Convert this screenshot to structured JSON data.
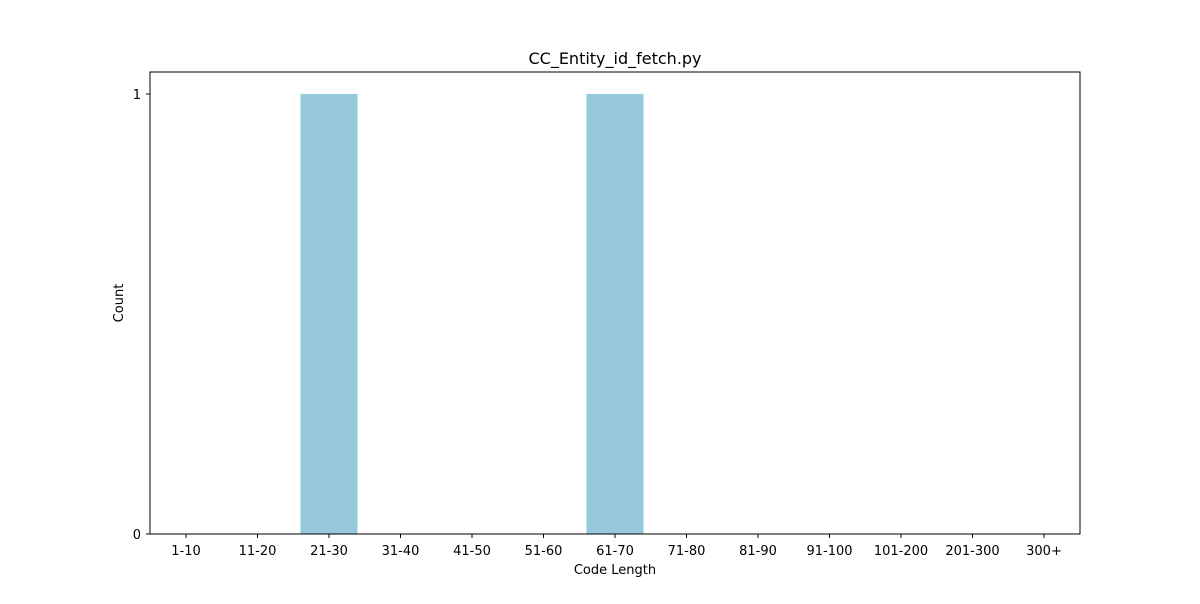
{
  "chart_data": {
    "type": "bar",
    "title": "CC_Entity_id_fetch.py",
    "xlabel": "Code Length",
    "ylabel": "Count",
    "categories": [
      "1-10",
      "11-20",
      "21-30",
      "31-40",
      "41-50",
      "51-60",
      "61-70",
      "71-80",
      "81-90",
      "91-100",
      "101-200",
      "201-300",
      "300+"
    ],
    "values": [
      0,
      0,
      1,
      0,
      0,
      0,
      1,
      0,
      0,
      0,
      0,
      0,
      0
    ],
    "ylim": [
      0,
      1
    ],
    "yticks": [
      0,
      1
    ],
    "grid": false,
    "bar_color": "#96c9dc"
  }
}
